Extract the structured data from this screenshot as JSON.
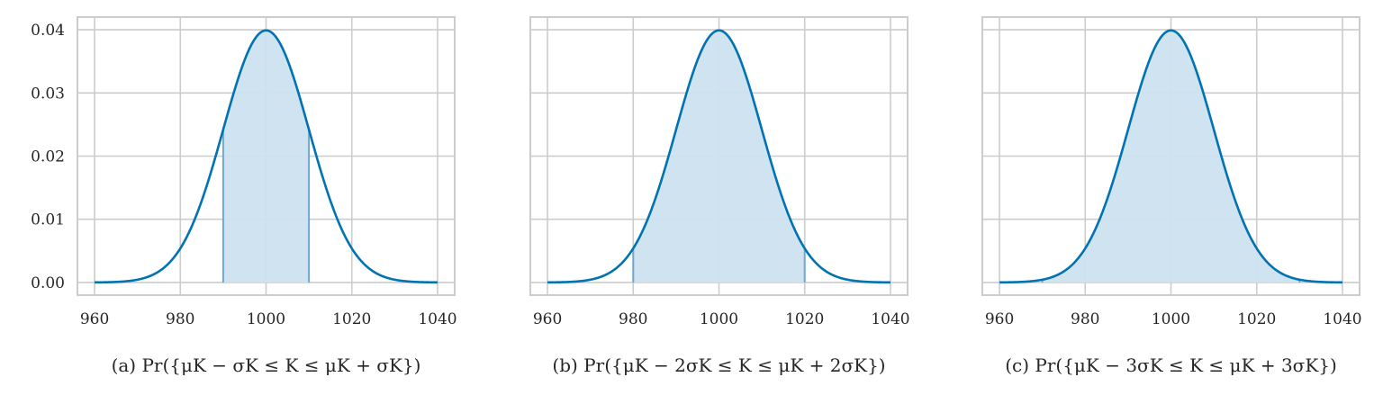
{
  "chart_data": [
    {
      "type": "area",
      "caption": "(a) Pr({μK − σK ≤ K ≤ μK + σK})",
      "distribution": {
        "mean": 1000,
        "sd": 10
      },
      "shade_range": [
        990,
        1010
      ],
      "xlim": [
        956,
        1044
      ],
      "ylim": [
        -0.002,
        0.042
      ],
      "xticks": [
        960,
        980,
        1000,
        1020,
        1040
      ],
      "yticks": [
        0.0,
        0.01,
        0.02,
        0.03,
        0.04
      ],
      "ytick_labels": [
        "0.00",
        "0.01",
        "0.02",
        "0.03",
        "0.04"
      ],
      "show_yticklabels": true,
      "grid": true
    },
    {
      "type": "area",
      "caption": "(b) Pr({μK − 2σK ≤ K ≤ μK + 2σK})",
      "distribution": {
        "mean": 1000,
        "sd": 10
      },
      "shade_range": [
        980,
        1020
      ],
      "xlim": [
        956,
        1044
      ],
      "ylim": [
        -0.002,
        0.042
      ],
      "xticks": [
        960,
        980,
        1000,
        1020,
        1040
      ],
      "yticks": [
        0.0,
        0.01,
        0.02,
        0.03,
        0.04
      ],
      "show_yticklabels": false,
      "grid": true
    },
    {
      "type": "area",
      "caption": "(c) Pr({μK − 3σK ≤ K ≤ μK + 3σK})",
      "distribution": {
        "mean": 1000,
        "sd": 10
      },
      "shade_range": [
        970,
        1030
      ],
      "xlim": [
        956,
        1044
      ],
      "ylim": [
        -0.002,
        0.042
      ],
      "xticks": [
        960,
        980,
        1000,
        1020,
        1040
      ],
      "yticks": [
        0.0,
        0.01,
        0.02,
        0.03,
        0.04
      ],
      "show_yticklabels": false,
      "grid": true
    }
  ],
  "colors": {
    "line": "#0173b2",
    "fill": "#cce1ef",
    "edge": "#6fa8cf",
    "grid": "#cccccc",
    "spine": "#cccccc",
    "text": "#262626"
  }
}
